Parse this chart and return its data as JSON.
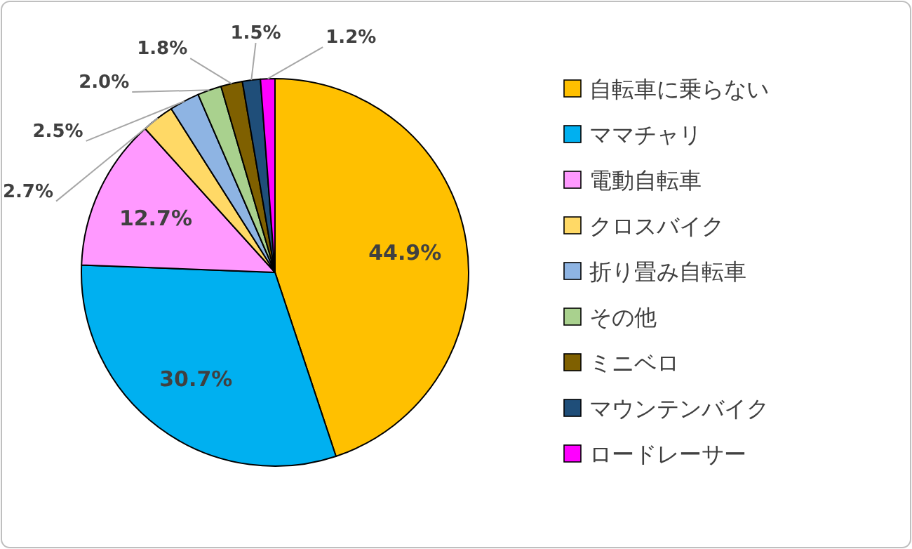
{
  "chart_data": {
    "type": "pie",
    "categories": [
      "自転車に乗らない",
      "ママチャリ",
      "電動自転車",
      "クロスバイク",
      "折り畳み自転車",
      "その他",
      "ミニベロ",
      "マウンテンバイク",
      "ロードレーサー"
    ],
    "values": [
      44.9,
      30.7,
      12.7,
      2.7,
      2.5,
      2.0,
      1.8,
      1.5,
      1.2
    ],
    "value_labels": [
      "44.9%",
      "30.7%",
      "12.7%",
      "2.7%",
      "2.5%",
      "2.0%",
      "1.8%",
      "1.5%",
      "1.2%"
    ],
    "colors": [
      "#ffc000",
      "#00b0f0",
      "#ff99ff",
      "#ffd966",
      "#8eb4e3",
      "#a9d18e",
      "#7f6000",
      "#1f4e79",
      "#ff00ff"
    ],
    "legend": "right"
  }
}
